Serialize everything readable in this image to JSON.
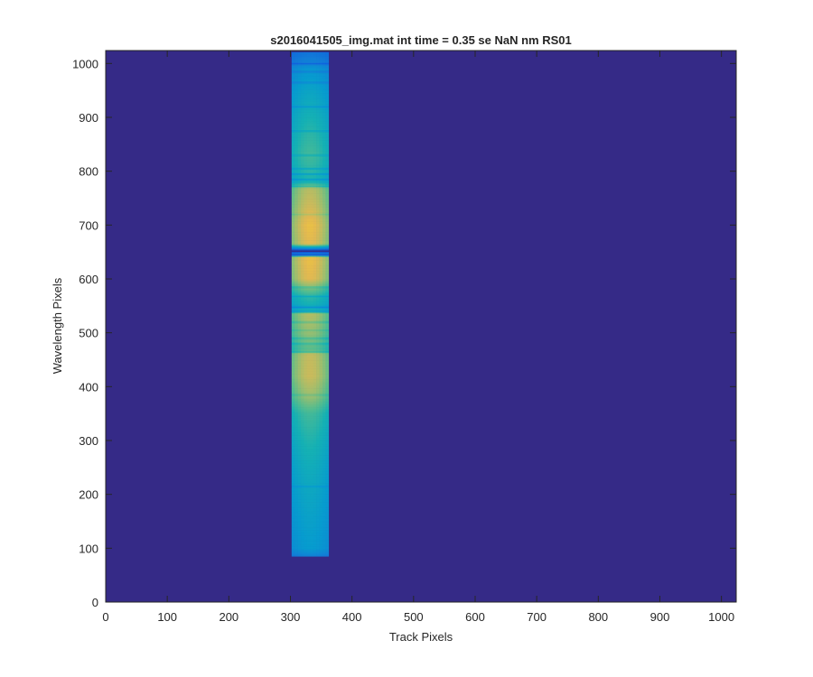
{
  "chart_data": {
    "type": "heatmap",
    "title": "s2016041505_img.mat int time = 0.35 se  NaN nm RS01",
    "xlabel": "Track Pixels",
    "ylabel": "Wavelength Pixels",
    "xlim": [
      0,
      1024
    ],
    "ylim": [
      0,
      1024
    ],
    "xticks": [
      0,
      100,
      200,
      300,
      400,
      500,
      600,
      700,
      800,
      900,
      1000
    ],
    "yticks": [
      0,
      100,
      200,
      300,
      400,
      500,
      600,
      700,
      800,
      900,
      1000
    ],
    "grid": false,
    "colormap": "parula",
    "background_color": "#352a87",
    "signal_band": {
      "x_range": [
        302,
        362
      ],
      "y_range": [
        85,
        1020
      ],
      "intensity_profile": [
        {
          "y": 85,
          "level": 0.32
        },
        {
          "y": 100,
          "level": 0.45
        },
        {
          "y": 150,
          "level": 0.48
        },
        {
          "y": 210,
          "level": 0.52
        },
        {
          "y": 250,
          "level": 0.55
        },
        {
          "y": 300,
          "level": 0.6
        },
        {
          "y": 350,
          "level": 0.66
        },
        {
          "y": 380,
          "level": 0.78
        },
        {
          "y": 420,
          "level": 0.85
        },
        {
          "y": 460,
          "level": 0.84
        },
        {
          "y": 470,
          "level": 0.7
        },
        {
          "y": 500,
          "level": 0.78
        },
        {
          "y": 535,
          "level": 0.82
        },
        {
          "y": 545,
          "level": 0.55
        },
        {
          "y": 560,
          "level": 0.6
        },
        {
          "y": 575,
          "level": 0.68
        },
        {
          "y": 600,
          "level": 0.88
        },
        {
          "y": 640,
          "level": 0.9
        },
        {
          "y": 648,
          "level": 0.3
        },
        {
          "y": 655,
          "level": 0.25
        },
        {
          "y": 665,
          "level": 0.88
        },
        {
          "y": 700,
          "level": 0.9
        },
        {
          "y": 740,
          "level": 0.85
        },
        {
          "y": 770,
          "level": 0.82
        },
        {
          "y": 780,
          "level": 0.58
        },
        {
          "y": 800,
          "level": 0.62
        },
        {
          "y": 830,
          "level": 0.66
        },
        {
          "y": 870,
          "level": 0.62
        },
        {
          "y": 900,
          "level": 0.58
        },
        {
          "y": 950,
          "level": 0.5
        },
        {
          "y": 990,
          "level": 0.42
        },
        {
          "y": 1005,
          "level": 0.32
        },
        {
          "y": 1020,
          "level": 0.26
        }
      ],
      "dark_lines": [
        {
          "y": 215,
          "depth": 0.08
        },
        {
          "y": 385,
          "depth": 0.06
        },
        {
          "y": 465,
          "depth": 0.12
        },
        {
          "y": 480,
          "depth": 0.08
        },
        {
          "y": 490,
          "depth": 0.08
        },
        {
          "y": 505,
          "depth": 0.06
        },
        {
          "y": 520,
          "depth": 0.08
        },
        {
          "y": 540,
          "depth": 0.2
        },
        {
          "y": 548,
          "depth": 0.15
        },
        {
          "y": 568,
          "depth": 0.1
        },
        {
          "y": 585,
          "depth": 0.08
        },
        {
          "y": 645,
          "depth": 0.45
        },
        {
          "y": 652,
          "depth": 0.45
        },
        {
          "y": 720,
          "depth": 0.05
        },
        {
          "y": 772,
          "depth": 0.12
        },
        {
          "y": 785,
          "depth": 0.14
        },
        {
          "y": 795,
          "depth": 0.15
        },
        {
          "y": 805,
          "depth": 0.12
        },
        {
          "y": 830,
          "depth": 0.08
        },
        {
          "y": 875,
          "depth": 0.1
        },
        {
          "y": 920,
          "depth": 0.1
        },
        {
          "y": 965,
          "depth": 0.12
        },
        {
          "y": 985,
          "depth": 0.12
        },
        {
          "y": 1000,
          "depth": 0.15
        }
      ]
    }
  }
}
